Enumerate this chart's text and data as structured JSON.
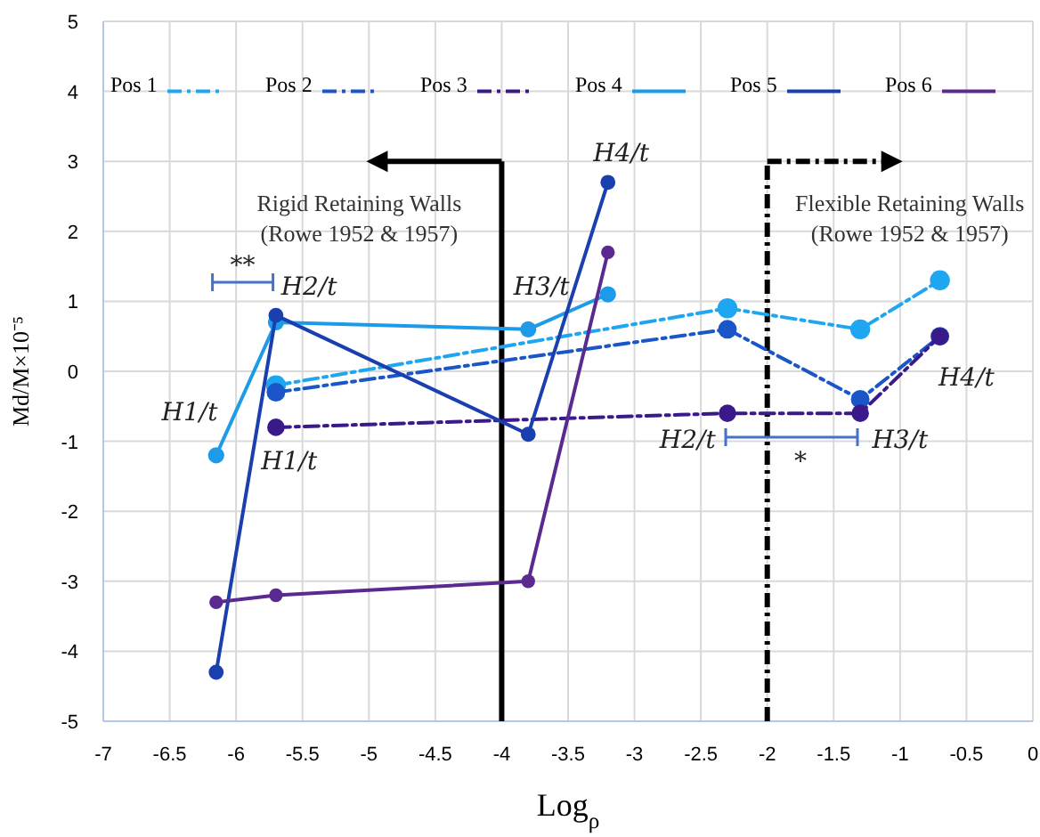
{
  "chart_data": {
    "type": "line",
    "xlabel": "Log$_{ρ}$",
    "ylabel": "Md/M×10⁻⁵",
    "xlim": [
      -7,
      0
    ],
    "xticks": [
      -7,
      -6.5,
      -6,
      -5.5,
      -5,
      -4.5,
      -4,
      -3.5,
      -3,
      -2.5,
      -2,
      -1.5,
      -1,
      -0.5,
      0
    ],
    "ylim": [
      -5,
      5
    ],
    "yticks": [
      -5,
      -4,
      -3,
      -2,
      -1,
      0,
      1,
      2,
      3,
      4,
      5
    ],
    "grid": true,
    "legend": "top",
    "marker": "circle",
    "series": [
      {
        "name": "Pos 1",
        "color": "#1ea7f0",
        "line_style": "dashed",
        "x": [
          -5.7,
          -2.3,
          -1.3,
          -0.7
        ],
        "values": [
          -0.2,
          0.9,
          0.6,
          1.3
        ]
      },
      {
        "name": "Pos 2",
        "color": "#1a56c8",
        "line_style": "dashed",
        "x": [
          -5.7,
          -2.3,
          -1.3,
          -0.7
        ],
        "values": [
          -0.3,
          0.6,
          -0.4,
          0.5
        ]
      },
      {
        "name": "Pos 3",
        "color": "#3a1a8a",
        "line_style": "dashed",
        "x": [
          -5.7,
          -2.3,
          -1.3,
          -0.7
        ],
        "values": [
          -0.8,
          -0.6,
          -0.6,
          0.5
        ]
      },
      {
        "name": "Pos 4",
        "color": "#1e9be8",
        "line_style": "solid",
        "x": [
          -6.15,
          -5.7,
          -3.8,
          -3.2
        ],
        "values": [
          -1.2,
          0.7,
          0.6,
          1.1
        ]
      },
      {
        "name": "Pos 5",
        "color": "#1a3fae",
        "line_style": "solid",
        "x": [
          -6.15,
          -5.7,
          -3.8,
          -3.2
        ],
        "values": [
          -4.3,
          0.8,
          -0.9,
          2.7
        ]
      },
      {
        "name": "Pos 6",
        "color": "#5a2a90",
        "line_style": "solid",
        "x": [
          -6.15,
          -5.7,
          -3.8,
          -3.2
        ],
        "values": [
          -3.3,
          -3.2,
          -3.0,
          1.7
        ]
      }
    ],
    "ref_lines": [
      {
        "axis": "x",
        "value": -4,
        "line_style": "solid",
        "color": "#000000"
      },
      {
        "axis": "x",
        "value": -2,
        "line_style": "dashed",
        "color": "#000000"
      }
    ],
    "annotations": [
      {
        "text": "Rigid Retaining Walls\n(Rowe 1952 & 1957)",
        "x": -4,
        "y": 3
      },
      {
        "text": "Flexible Retaining Walls\n(Rowe 1952 & 1957)",
        "x": -2,
        "y": 3
      },
      "H1/t",
      "H1/t",
      "H2/t",
      "H3/t",
      "H4/t",
      "H4/t",
      "H2/t",
      "H3/t",
      "**",
      "*"
    ]
  }
}
